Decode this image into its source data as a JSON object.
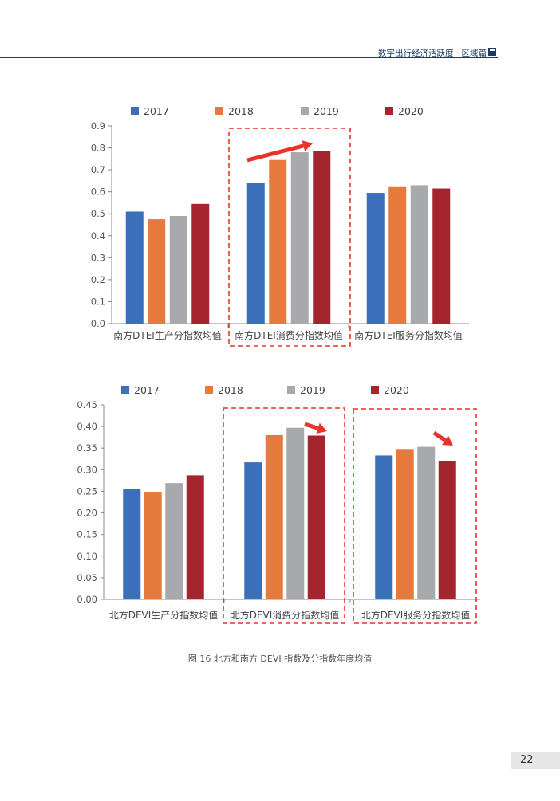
{
  "header": {
    "title": "数字出行经济活跃度 · 区域篇"
  },
  "figure": {
    "caption": "图 16 北方和南方 DEVI 指数及分指数年度均值"
  },
  "page": {
    "number": "22"
  },
  "colors": {
    "2017": "#3c6fb9",
    "2018": "#e57a3c",
    "2019": "#a7a9ac",
    "2020": "#a4252e",
    "highlight": "#e8332a",
    "axis": "#888888"
  },
  "chart_data": [
    {
      "type": "bar",
      "categories": [
        "南方DTEI生产分指数均值",
        "南方DTEI消费分指数均值",
        "南方DTEI服务分指数均值"
      ],
      "series": [
        {
          "name": "2017",
          "values": [
            0.51,
            0.64,
            0.595
          ]
        },
        {
          "name": "2018",
          "values": [
            0.475,
            0.745,
            0.625
          ]
        },
        {
          "name": "2019",
          "values": [
            0.49,
            0.78,
            0.63
          ]
        },
        {
          "name": "2020",
          "values": [
            0.545,
            0.785,
            0.615
          ]
        }
      ],
      "yticks": [
        "0.0",
        "0.1",
        "0.2",
        "0.3",
        "0.4",
        "0.5",
        "0.6",
        "0.7",
        "0.8",
        "0.9"
      ],
      "ylim": [
        0,
        0.9
      ],
      "legend": "top",
      "grid": false
    },
    {
      "type": "bar",
      "categories": [
        "北方DEVI生产分指数均值",
        "北方DEVI消费分指数均值",
        "北方DEVI服务分指数均值"
      ],
      "series": [
        {
          "name": "2017",
          "values": [
            0.256,
            0.317,
            0.333
          ]
        },
        {
          "name": "2018",
          "values": [
            0.249,
            0.38,
            0.348
          ]
        },
        {
          "name": "2019",
          "values": [
            0.269,
            0.397,
            0.353
          ]
        },
        {
          "name": "2020",
          "values": [
            0.287,
            0.379,
            0.32
          ]
        }
      ],
      "yticks": [
        "0.00",
        "0.05",
        "0.10",
        "0.15",
        "0.20",
        "0.25",
        "0.30",
        "0.35",
        "0.40",
        "0.45"
      ],
      "ylim": [
        0,
        0.45
      ],
      "legend": "top",
      "grid": false
    }
  ]
}
